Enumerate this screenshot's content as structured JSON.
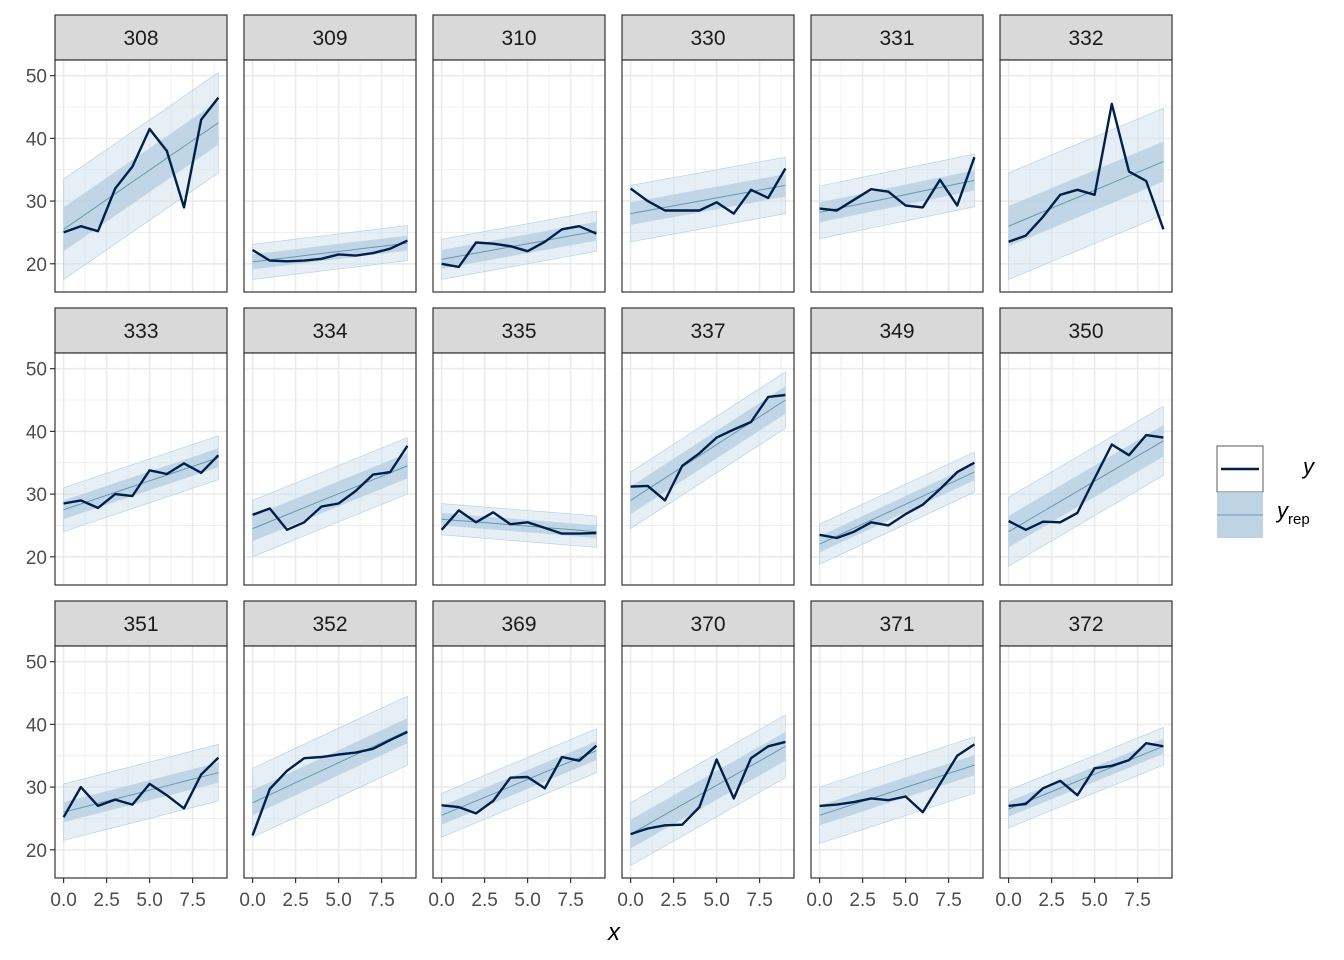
{
  "chart_data": {
    "type": "line",
    "layout": "facet_wrap 3x6",
    "xlabel": "x",
    "ylabel": "",
    "xlim": [
      -0.5,
      9.5
    ],
    "ylim": [
      15.5,
      52.5
    ],
    "x_ticks": [
      0,
      2.5,
      5,
      7.5
    ],
    "x_tick_labels": [
      "0.0",
      "2.5",
      "5.0",
      "7.5"
    ],
    "y_ticks": [
      20,
      30,
      40,
      50
    ],
    "y_tick_labels": [
      "20",
      "30",
      "40",
      "50"
    ],
    "grid": true,
    "legend": {
      "position": "right",
      "entries": [
        {
          "key": "y",
          "label": "y",
          "type": "line"
        },
        {
          "key": "yrep",
          "label_main": "y",
          "label_sub": "rep",
          "type": "ribbon"
        }
      ]
    },
    "colors": {
      "observed": "#011f4b",
      "predicted_line": "#6497b1",
      "inner_band": "#b3cde0",
      "outer_band": "#d1e1ec",
      "strip_fill": "#d9d9d9",
      "grid": "#ebebeb"
    },
    "x": [
      0,
      1,
      2,
      3,
      4,
      5,
      6,
      7,
      8,
      9
    ],
    "panels": [
      {
        "label": "308",
        "y": [
          25.0,
          26.0,
          25.2,
          32.0,
          35.5,
          41.5,
          38.0,
          29.0,
          43.0,
          46.5
        ],
        "yrep": [
          25.5,
          42.5
        ],
        "inner_hw": 3.5,
        "outer_hw": 8.0
      },
      {
        "label": "309",
        "y": [
          22.2,
          20.5,
          20.4,
          20.5,
          20.8,
          21.5,
          21.3,
          21.7,
          22.4,
          23.7
        ],
        "yrep": [
          20.3,
          23.3
        ],
        "inner_hw": 1.2,
        "outer_hw": 2.8
      },
      {
        "label": "310",
        "y": [
          20.0,
          19.5,
          23.4,
          23.2,
          22.8,
          22.0,
          23.5,
          25.5,
          26.0,
          24.8
        ],
        "yrep": [
          20.7,
          25.2
        ],
        "inner_hw": 1.5,
        "outer_hw": 3.2
      },
      {
        "label": "330",
        "y": [
          32.0,
          30.0,
          28.5,
          28.5,
          28.5,
          29.8,
          28.0,
          31.8,
          30.5,
          35.2
        ],
        "yrep": [
          28.0,
          32.5
        ],
        "inner_hw": 1.8,
        "outer_hw": 4.5
      },
      {
        "label": "331",
        "y": [
          28.8,
          28.5,
          30.2,
          31.9,
          31.5,
          29.3,
          29.0,
          33.4,
          29.3,
          37.0
        ],
        "yrep": [
          28.2,
          33.3
        ],
        "inner_hw": 1.6,
        "outer_hw": 4.2
      },
      {
        "label": "332",
        "y": [
          23.5,
          24.5,
          27.5,
          31.0,
          31.8,
          31.0,
          45.5,
          34.7,
          33.2,
          25.5
        ],
        "yrep": [
          26.0,
          36.3
        ],
        "inner_hw": 3.2,
        "outer_hw": 8.5
      },
      {
        "label": "333",
        "y": [
          28.5,
          29.0,
          27.8,
          30.0,
          29.7,
          33.8,
          33.2,
          34.9,
          33.4,
          36.2
        ],
        "yrep": [
          27.5,
          35.8
        ],
        "inner_hw": 1.5,
        "outer_hw": 3.5
      },
      {
        "label": "334",
        "y": [
          26.7,
          27.7,
          24.3,
          25.5,
          28.0,
          28.5,
          30.5,
          33.1,
          33.5,
          37.7
        ],
        "yrep": [
          24.5,
          34.5
        ],
        "inner_hw": 2.0,
        "outer_hw": 4.5
      },
      {
        "label": "335",
        "y": [
          24.3,
          27.4,
          25.5,
          27.1,
          25.2,
          25.5,
          24.6,
          23.7,
          23.7,
          23.8
        ],
        "yrep": [
          26.0,
          24.0
        ],
        "inner_hw": 1.0,
        "outer_hw": 2.5
      },
      {
        "label": "337",
        "y": [
          31.2,
          31.3,
          29.0,
          34.5,
          36.5,
          39.0,
          40.3,
          41.5,
          45.5,
          45.8
        ],
        "yrep": [
          29.0,
          45.0
        ],
        "inner_hw": 2.2,
        "outer_hw": 4.5
      },
      {
        "label": "349",
        "y": [
          23.5,
          23.0,
          24.0,
          25.5,
          25.0,
          26.8,
          28.3,
          30.8,
          33.5,
          35.0
        ],
        "yrep": [
          22.0,
          33.5
        ],
        "inner_hw": 1.3,
        "outer_hw": 3.2
      },
      {
        "label": "350",
        "y": [
          25.7,
          24.3,
          25.6,
          25.5,
          27.0,
          32.5,
          37.9,
          36.2,
          39.4,
          39.0
        ],
        "yrep": [
          24.0,
          38.5
        ],
        "inner_hw": 2.5,
        "outer_hw": 5.5
      },
      {
        "label": "351",
        "y": [
          25.2,
          30.0,
          27.0,
          28.0,
          27.2,
          30.5,
          28.7,
          26.6,
          32.0,
          34.7
        ],
        "yrep": [
          26.0,
          32.3
        ],
        "inner_hw": 1.6,
        "outer_hw": 4.5
      },
      {
        "label": "352",
        "y": [
          22.3,
          29.7,
          32.6,
          34.6,
          34.8,
          35.2,
          35.5,
          36.1,
          37.5,
          38.8
        ],
        "yrep": [
          27.5,
          39.0
        ],
        "inner_hw": 2.0,
        "outer_hw": 5.5
      },
      {
        "label": "369",
        "y": [
          27.1,
          26.8,
          25.8,
          27.8,
          31.5,
          31.6,
          29.8,
          34.8,
          34.2,
          36.6
        ],
        "yrep": [
          25.5,
          35.8
        ],
        "inner_hw": 1.5,
        "outer_hw": 3.5
      },
      {
        "label": "370",
        "y": [
          22.5,
          23.4,
          23.9,
          24.0,
          26.8,
          34.4,
          28.2,
          34.6,
          36.5,
          37.2
        ],
        "yrep": [
          22.5,
          36.5
        ],
        "inner_hw": 2.3,
        "outer_hw": 5.0
      },
      {
        "label": "371",
        "y": [
          27.0,
          27.2,
          27.6,
          28.2,
          27.9,
          28.5,
          26.0,
          30.5,
          35.0,
          36.8
        ],
        "yrep": [
          25.5,
          33.5
        ],
        "inner_hw": 1.6,
        "outer_hw": 4.5
      },
      {
        "label": "372",
        "y": [
          27.0,
          27.3,
          29.8,
          31.0,
          28.7,
          33.0,
          33.4,
          34.3,
          37.0,
          36.5
        ],
        "yrep": [
          26.5,
          36.5
        ],
        "inner_hw": 1.2,
        "outer_hw": 3.0
      }
    ]
  }
}
